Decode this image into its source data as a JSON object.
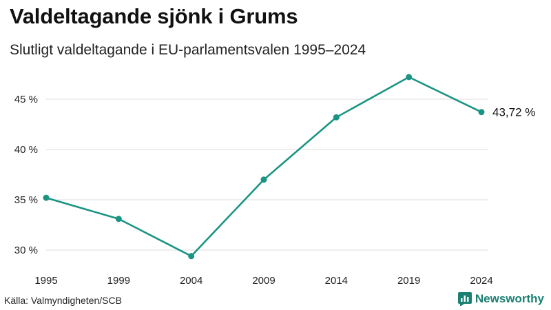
{
  "header": {
    "title": "Valdeltagande sjönk i Grums",
    "subtitle": "Slutligt valdeltagande i EU-parlamentsvalen 1995–2024"
  },
  "footer": {
    "source": "Källa: Valmyndigheten/SCB",
    "brand": "Newsworthy",
    "brand_icon": "bar-chart-logo-icon"
  },
  "colors": {
    "line": "#1b9483",
    "grid": "#dddddd",
    "brand": "#1b7f73"
  },
  "chart_data": {
    "type": "line",
    "title": "Valdeltagande sjönk i Grums",
    "subtitle": "Slutligt valdeltagande i EU-parlamentsvalen 1995–2024",
    "xlabel": "",
    "ylabel": "",
    "x": [
      "1995",
      "1999",
      "2004",
      "2009",
      "2014",
      "2019",
      "2024"
    ],
    "series": [
      {
        "name": "Valdeltagande",
        "values": [
          35.2,
          33.1,
          29.4,
          37.0,
          43.2,
          47.2,
          43.72
        ]
      }
    ],
    "ylim": [
      29,
      48
    ],
    "yticks": [
      30,
      35,
      40,
      45
    ],
    "ytick_labels": [
      "30 %",
      "35 %",
      "40 %",
      "45 %"
    ],
    "grid": true,
    "end_label": "43,72 %"
  }
}
